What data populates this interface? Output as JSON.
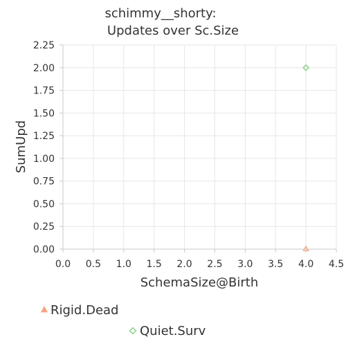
{
  "chart_data": {
    "type": "scatter",
    "title": [
      "schimmy__shorty:",
      "Updates over Sc.Size"
    ],
    "xlabel": "SchemaSize@Birth",
    "ylabel": "SumUpd",
    "xlim": [
      0,
      4.5
    ],
    "ylim": [
      0,
      2.25
    ],
    "xticks": [
      "0.0",
      "0.5",
      "1.0",
      "1.5",
      "2.0",
      "2.5",
      "3.0",
      "3.5",
      "4.0",
      "4.5"
    ],
    "yticks": [
      "0.00",
      "0.25",
      "0.50",
      "0.75",
      "1.00",
      "1.25",
      "1.50",
      "1.75",
      "2.00",
      "2.25"
    ],
    "grid": true,
    "legend_position": "bottom",
    "series": [
      {
        "name": "Rigid.Dead",
        "marker": "triangle",
        "color": "#f4a582",
        "points": [
          {
            "x": 4,
            "y": 0
          }
        ]
      },
      {
        "name": "Quiet.Surv",
        "marker": "diamond",
        "color": "#7fcf7f",
        "points": [
          {
            "x": 4,
            "y": 2
          }
        ]
      }
    ]
  }
}
